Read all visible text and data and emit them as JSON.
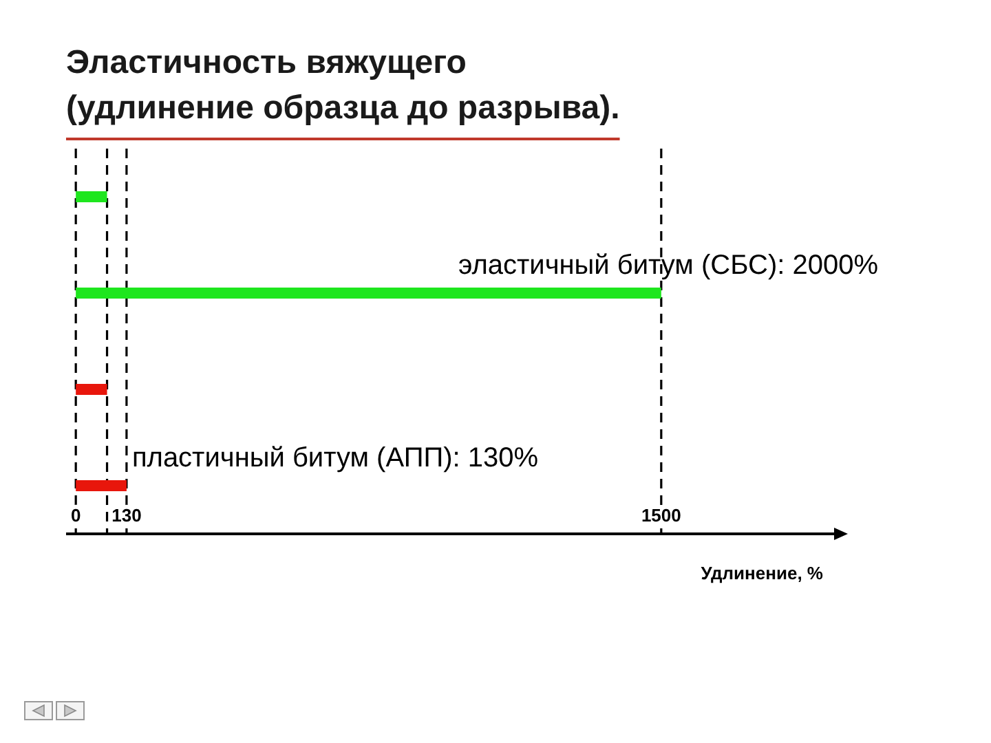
{
  "chart_data": {
    "type": "bar",
    "orientation": "horizontal",
    "title": "Эластичность вяжущего\n(удлинение образца до разрыва).",
    "categories": [
      null,
      null,
      null,
      null
    ],
    "values": [
      80,
      1500,
      80,
      130
    ],
    "colors": [
      "#1ee61e",
      "#1ee61e",
      "#e8160c",
      "#e8160c"
    ],
    "xlim": [
      -25,
      1950
    ],
    "xticks": [
      0,
      130,
      1500
    ],
    "xlabel": "Удлинение, %",
    "ref_lines": [
      {
        "axis": "x",
        "value": 0,
        "color": "#000000",
        "line_style": "dashed"
      },
      {
        "axis": "x",
        "value": 80,
        "color": "#000000",
        "line_style": "dashed"
      },
      {
        "axis": "x",
        "value": 130,
        "color": "#000000",
        "line_style": "dashed"
      },
      {
        "axis": "x",
        "value": 1500,
        "color": "#000000",
        "line_style": "dashed"
      }
    ],
    "annotations": [
      {
        "text": "эластичный битум (СБС): 2000%",
        "x": 1500
      },
      {
        "text": "пластичный битум (АПП): 130%",
        "x": 130
      }
    ]
  }
}
